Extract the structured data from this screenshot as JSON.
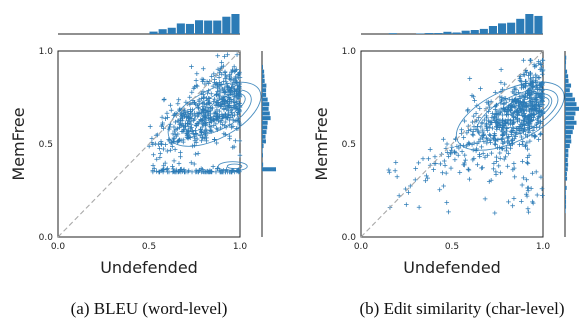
{
  "chart_data": [
    {
      "type": "scatter",
      "caption": "(a) BLEU (word-level)",
      "xlabel": "Undefended",
      "ylabel": "MemFree",
      "xlim": [
        0,
        1
      ],
      "ylim": [
        0,
        1
      ],
      "x_ticks": [
        "0.0",
        "0.5",
        "1.0"
      ],
      "y_ticks": [
        "0.0",
        "0.5",
        "1.0"
      ],
      "reference_line": "y = x (dashed)",
      "marker": "+",
      "color": "#2c7bb6",
      "marginal_histograms": true,
      "kde_contours": true,
      "distribution": {
        "x_range": [
          0.5,
          1.0
        ],
        "y_range": [
          0.35,
          0.98
        ],
        "y_mode": 0.5,
        "y_horizontal_cluster": 0.35,
        "x_concentration": 1.0
      }
    },
    {
      "type": "scatter",
      "caption": "(b) Edit similarity (char-level)",
      "xlabel": "Undefended",
      "ylabel": "MemFree",
      "xlim": [
        0,
        1
      ],
      "ylim": [
        0,
        1
      ],
      "x_ticks": [
        "0.0",
        "0.5",
        "1.0"
      ],
      "y_ticks": [
        "0.0",
        "0.5",
        "1.0"
      ],
      "reference_line": "y = x (dashed)",
      "marker": "+",
      "color": "#2c7bb6",
      "marginal_histograms": true,
      "kde_contours": true,
      "distribution": {
        "x_range": [
          0.15,
          1.0
        ],
        "y_range": [
          0.12,
          0.95
        ],
        "y_mode": 0.6,
        "x_concentration": 1.0
      }
    }
  ]
}
